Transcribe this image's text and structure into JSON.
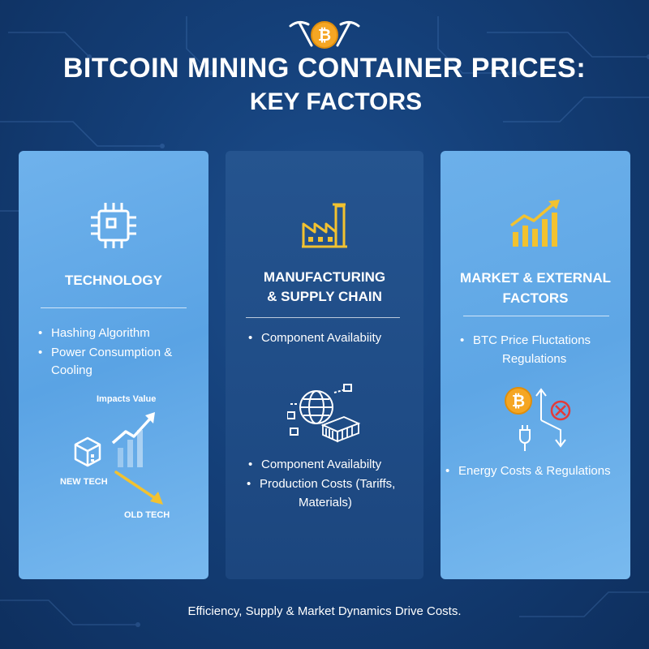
{
  "title": {
    "line1": "BITCOIN MINING CONTAINER PRICES:",
    "line2": "KEY FACTORS"
  },
  "icons": {
    "top": "pickaxes-bitcoin-icon",
    "technology": "microchip-icon",
    "manufacturing": "factory-icon",
    "market": "rising-bar-chart-icon",
    "supply_chain_graphic": "globe-shipping-containers-icon",
    "container": "container-box-icon",
    "regulation": "bitcoin-plug-blocked-icon"
  },
  "cards": {
    "technology": {
      "heading": "TECHNOLOGY",
      "bullets": [
        "Hashing Algorithm",
        "Power Consumption &",
        "Cooling"
      ],
      "impacts_label": "Impacts Value",
      "new_tech_label": "NEW TECH",
      "old_tech_label": "OLD TECH"
    },
    "manufacturing": {
      "heading_line1": "MANUFACTURING",
      "heading_line2": "& SUPPLY CHAIN",
      "bullet_top": "Component Availabiity",
      "bullets_bottom": [
        "Component Availabilty",
        "Production Costs (Tariffs,",
        "Materials)"
      ]
    },
    "market": {
      "heading_line1": "MARKET & EXTERNAL",
      "heading_line2": "FACTORS",
      "bullet_top_line1": "BTC Price Fluctations",
      "bullet_top_line2": "Regulations",
      "bullet_bottom": "Energy Costs & Regulations"
    }
  },
  "footer": "Efficiency, Supply & Market Dynamics Drive Costs.",
  "colors": {
    "accent_gold": "#f2c230",
    "bitcoin_orange": "#f5a623",
    "bg_dark": "#143f78",
    "card_light": "#6aaeea",
    "card_mid": "#22508b",
    "red": "#e23b3b"
  }
}
